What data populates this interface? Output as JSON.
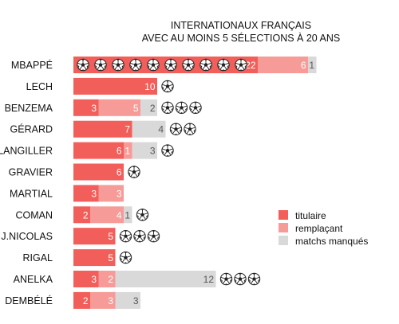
{
  "chart_data": {
    "type": "bar",
    "stacked": true,
    "orientation": "horizontal",
    "title": [
      "INTERNATIONAUX FRANÇAIS",
      "AVEC AU MOINS 5 SÉLECTIONS À 20 ANS"
    ],
    "categories": [
      "MBAPPÉ",
      "LECH",
      "BENZEMA",
      "GÉRARD",
      "LANGILLER",
      "GRAVIER",
      "MARTIAL",
      "COMAN",
      "J.NICOLAS",
      "RIGAL",
      "ANELKA",
      "DEMBÉLÉ"
    ],
    "series": [
      {
        "name": "titulaire",
        "color": "#f25e5a",
        "values": [
          22,
          10,
          3,
          7,
          6,
          6,
          3,
          2,
          5,
          5,
          3,
          2
        ]
      },
      {
        "name": "remplaçant",
        "color": "#f79b98",
        "values": [
          6,
          0,
          5,
          0,
          1,
          0,
          3,
          4,
          0,
          0,
          2,
          3
        ]
      },
      {
        "name": "matchs manqués",
        "color": "#d9d9d9",
        "values": [
          1,
          0,
          2,
          4,
          3,
          0,
          0,
          1,
          0,
          0,
          12,
          3
        ]
      }
    ],
    "goals": [
      10,
      1,
      3,
      2,
      1,
      1,
      0,
      1,
      3,
      1,
      3,
      0
    ],
    "goal_icon": "soccer-ball-icon",
    "legend": {
      "position": "right",
      "items": [
        "titulaire",
        "remplaçant",
        "matchs manqués"
      ]
    },
    "grid": false
  }
}
